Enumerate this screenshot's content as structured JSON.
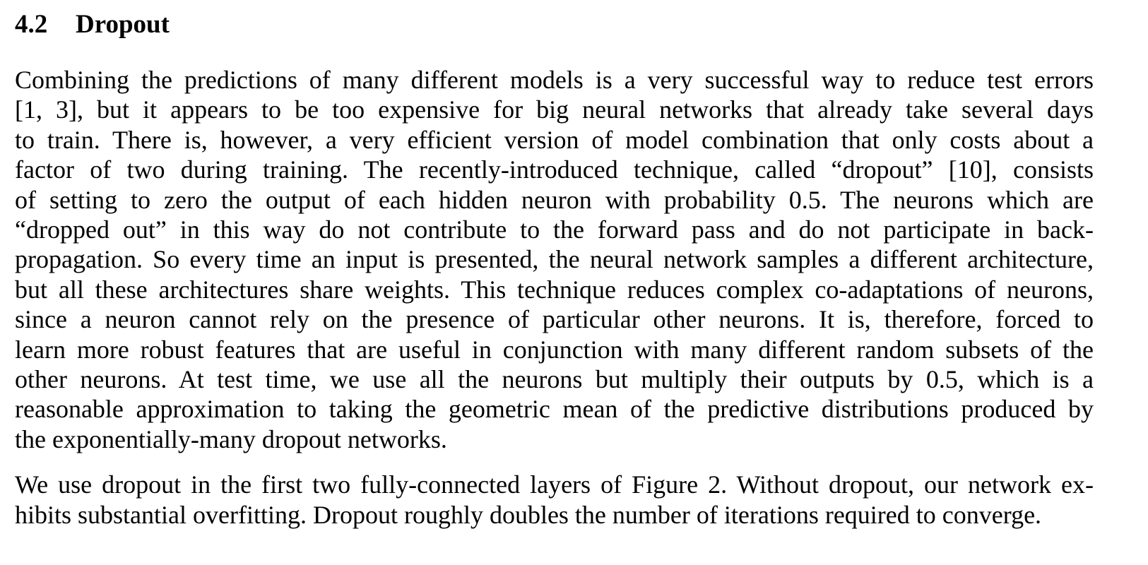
{
  "section": {
    "number": "4.2",
    "title": "Dropout"
  },
  "paragraphs": [
    {
      "lines": [
        "Combining the predictions of many different models is a very successful way to reduce test errors",
        "[1, 3], but it appears to be too expensive for big neural networks that already take several days",
        "to train.  There is, however, a very efficient version of model combination that only costs about a",
        "factor of two during training.  The recently-introduced technique, called “dropout” [10], consists",
        "of setting to zero the output of each hidden neuron with probability 0.5.  The neurons which are",
        "“dropped out” in this way do not contribute to the forward pass and do not participate in back-",
        "propagation. So every time an input is presented, the neural network samples a different architecture,",
        "but all these architectures share weights. This technique reduces complex co-adaptations of neurons,",
        "since a neuron cannot rely on the presence of particular other neurons.  It is, therefore, forced to",
        "learn more robust features that are useful in conjunction with many different random subsets of the",
        "other neurons.  At test time, we use all the neurons but multiply their outputs by 0.5, which is a",
        "reasonable approximation to taking the geometric mean of the predictive distributions produced by",
        "the exponentially-many dropout networks."
      ]
    },
    {
      "lines": [
        "We use dropout in the first two fully-connected layers of Figure 2. Without dropout, our network ex-",
        "hibits substantial overfitting. Dropout roughly doubles the number of iterations required to converge."
      ]
    }
  ]
}
